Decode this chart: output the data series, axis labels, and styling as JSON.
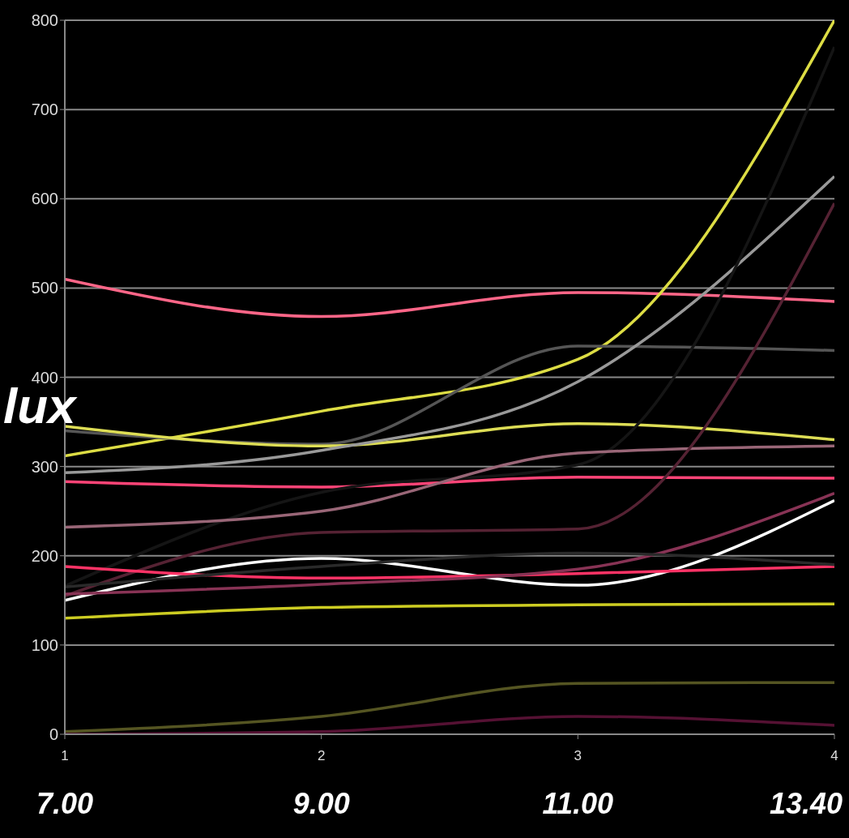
{
  "chart_data": {
    "type": "line",
    "ylabel": "lux",
    "categories": [
      "1",
      "2",
      "3",
      "4"
    ],
    "annotations": [
      "7.00",
      "9.00",
      "11.00",
      "13.40"
    ],
    "ylim": [
      0,
      800
    ],
    "yticks": [
      0,
      100,
      200,
      300,
      400,
      500,
      600,
      700,
      800
    ],
    "grid": "y",
    "marker": "none",
    "line_style": "solid",
    "series": [
      {
        "color": "#ff6688",
        "values": [
          510,
          468,
          495,
          485
        ]
      },
      {
        "color": "#dddd44",
        "values": [
          312,
          362,
          420,
          800
        ]
      },
      {
        "color": "#555555",
        "values": [
          340,
          325,
          435,
          430
        ]
      },
      {
        "color": "#dddd55",
        "values": [
          345,
          323,
          348,
          330
        ]
      },
      {
        "color": "#999999",
        "values": [
          293,
          318,
          395,
          625
        ]
      },
      {
        "color": "#ff4477",
        "values": [
          283,
          277,
          288,
          287
        ]
      },
      {
        "color": "#151515",
        "values": [
          166,
          271,
          302,
          770
        ]
      },
      {
        "color": "#996677",
        "values": [
          232,
          250,
          315,
          323
        ]
      },
      {
        "color": "#552233",
        "values": [
          155,
          226,
          230,
          595
        ]
      },
      {
        "color": "#ffffff",
        "values": [
          150,
          197,
          167,
          262
        ]
      },
      {
        "color": "#ff3366",
        "values": [
          188,
          175,
          180,
          188
        ]
      },
      {
        "color": "#883355",
        "values": [
          157,
          168,
          185,
          270
        ]
      },
      {
        "color": "#2a2a2a",
        "values": [
          165,
          188,
          203,
          190
        ]
      },
      {
        "color": "#cccc22",
        "values": [
          130,
          142,
          145,
          146
        ]
      },
      {
        "color": "#555522",
        "values": [
          3,
          20,
          57,
          58
        ]
      },
      {
        "color": "#551133",
        "values": [
          0,
          3,
          20,
          10
        ]
      }
    ]
  }
}
